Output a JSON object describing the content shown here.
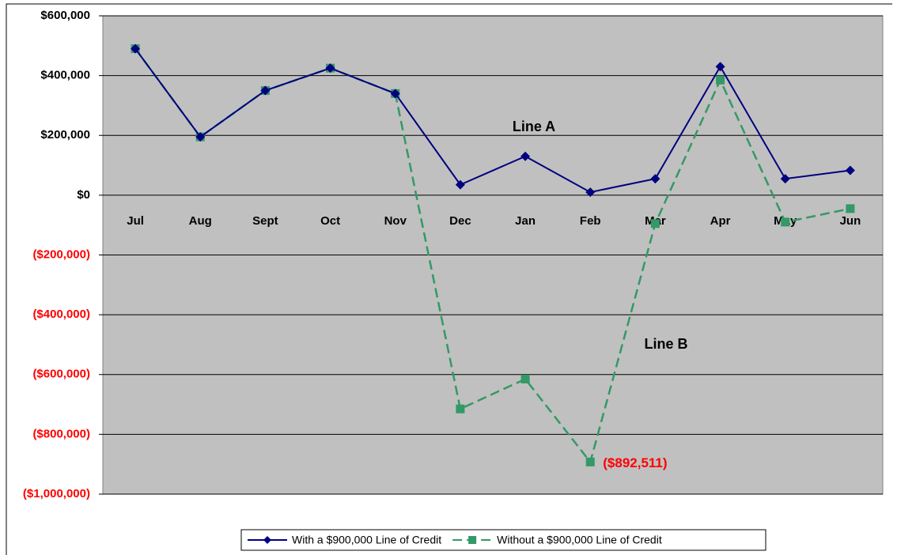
{
  "chart_data": {
    "type": "line",
    "categories": [
      "Jul",
      "Aug",
      "Sept",
      "Oct",
      "Nov",
      "Dec",
      "Jan",
      "Feb",
      "Mar",
      "Apr",
      "May",
      "Jun"
    ],
    "series": [
      {
        "name": "With a $900,000 Line of Credit",
        "color": "#000080",
        "marker": "diamond",
        "dashed": false,
        "values": [
          490000,
          195000,
          350000,
          425000,
          340000,
          35000,
          130000,
          10000,
          55000,
          430000,
          55000,
          83000
        ]
      },
      {
        "name": "Without a $900,000 Line of Credit",
        "color": "#339966",
        "marker": "square",
        "dashed": true,
        "values": [
          490000,
          195000,
          350000,
          425000,
          340000,
          -715000,
          -615000,
          -892511,
          -95000,
          385000,
          -90000,
          -45000
        ],
        "value_labels": [
          null,
          null,
          null,
          null,
          null,
          null,
          null,
          "($892,511)",
          null,
          null,
          null,
          null
        ]
      }
    ],
    "ylim": [
      -1000000,
      600000
    ],
    "yticks": [
      {
        "value": -1000000,
        "label": "($1,000,000)"
      },
      {
        "value": -800000,
        "label": "($800,000)"
      },
      {
        "value": -600000,
        "label": "($600,000)"
      },
      {
        "value": -400000,
        "label": "($400,000)"
      },
      {
        "value": -200000,
        "label": "($200,000)"
      },
      {
        "value": 0,
        "label": "$0"
      },
      {
        "value": 200000,
        "label": "$200,000"
      },
      {
        "value": 400000,
        "label": "$400,000"
      },
      {
        "value": 600000,
        "label": "$600,000"
      }
    ],
    "negative_label_color": "#ff0000",
    "grid": true,
    "legend": "bottom",
    "annotations": [
      "Line A",
      "Line B"
    ]
  }
}
